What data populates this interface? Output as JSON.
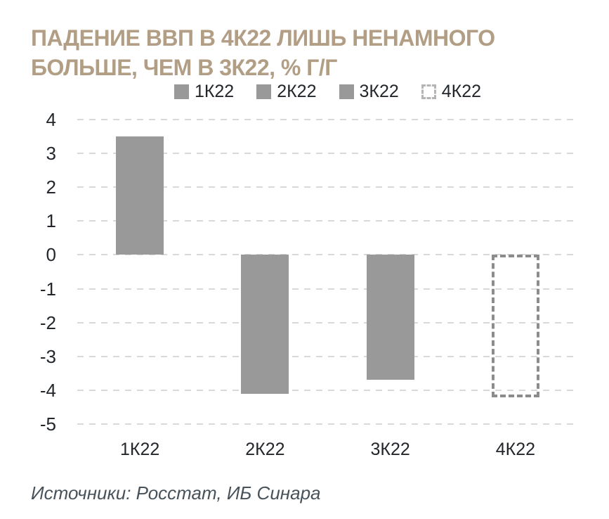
{
  "title": {
    "line1": "ПАДЕНИЕ ВВП В 4К22 ЛИШЬ НЕНАМНОГО",
    "line2": "БОЛЬШЕ, ЧЕМ В 3К22, % Г/Г"
  },
  "source": "Источники: Росстат, ИБ Синара",
  "colors": {
    "title_text": "#b19e85",
    "bar_fill": "#999999",
    "dashed_bar_border": "#8c8c8c",
    "gridline": "#d9d9d9",
    "axis_text": "#23272b",
    "source_text": "#48525a",
    "legend_dashed_marker": "#b5b5b5",
    "background": "#ffffff"
  },
  "chart_data": {
    "type": "bar",
    "title": "ПАДЕНИЕ ВВП В 4К22 ЛИШЬ НЕНАМНОГО БОЛЬШЕ, ЧЕМ В 3К22, % Г/Г",
    "units": "% г/г",
    "categories": [
      "1К22",
      "2К22",
      "3К22",
      "4К22"
    ],
    "values": [
      3.5,
      -4.1,
      -3.7,
      -4.2
    ],
    "bar_styles": [
      "solid",
      "solid",
      "solid",
      "dashed"
    ],
    "ylim": [
      -5,
      4
    ],
    "ytick_step": 1,
    "yticks": [
      4,
      3,
      2,
      1,
      0,
      -1,
      -2,
      -3,
      -4,
      -5
    ],
    "grid": "horizontal-dashed",
    "legend_position": "top-center",
    "legend": [
      {
        "label": "1К22",
        "marker": "solid"
      },
      {
        "label": "2К22",
        "marker": "solid"
      },
      {
        "label": "3К22",
        "marker": "solid"
      },
      {
        "label": "4К22",
        "marker": "dashed"
      }
    ],
    "xlabel": "",
    "ylabel": ""
  }
}
